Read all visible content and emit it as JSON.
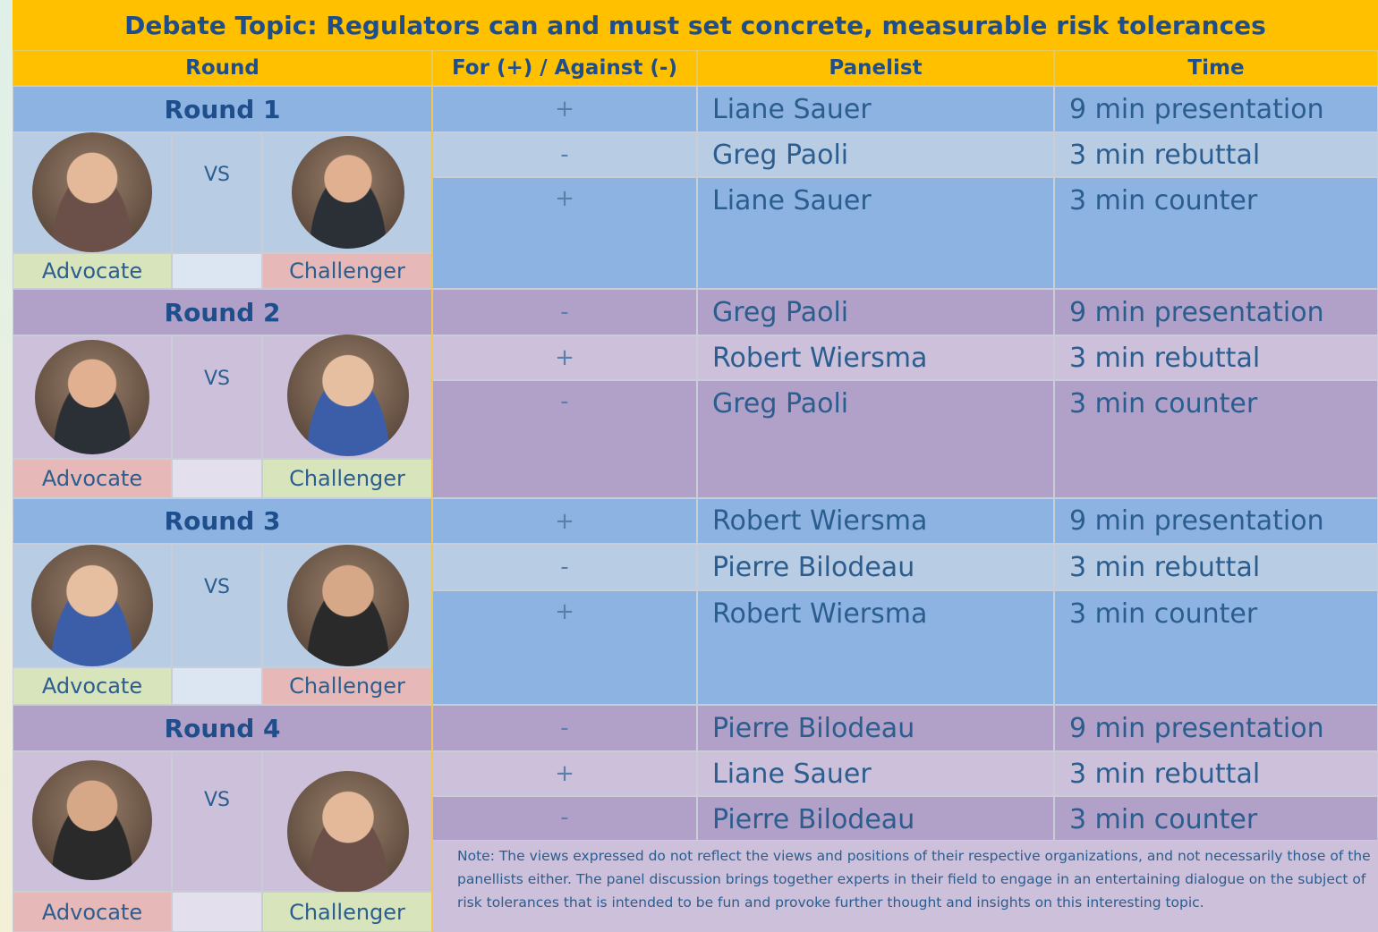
{
  "header": {
    "title": "Debate Topic: Regulators can and must set concrete, measurable risk tolerances"
  },
  "columns": [
    "Round",
    "For (+) / Against (-)",
    "Panelist",
    "Time"
  ],
  "rounds": [
    {
      "label": "Round 1",
      "vs": "VS",
      "left_role": "Advocate",
      "right_role": "Challenger",
      "rows": [
        {
          "side": "+",
          "panelist": "Liane Sauer",
          "time": "9 min presentation"
        },
        {
          "side": "-",
          "panelist": "Greg Paoli",
          "time": "3 min rebuttal"
        },
        {
          "side": "+",
          "panelist": "Liane Sauer",
          "time": "3 min counter"
        }
      ]
    },
    {
      "label": "Round 2",
      "vs": "VS",
      "left_role": "Advocate",
      "right_role": "Challenger",
      "rows": [
        {
          "side": "-",
          "panelist": "Greg Paoli",
          "time": "9 min presentation"
        },
        {
          "side": "+",
          "panelist": "Robert Wiersma",
          "time": "3 min rebuttal"
        },
        {
          "side": "-",
          "panelist": "Greg Paoli",
          "time": "3 min counter"
        }
      ]
    },
    {
      "label": "Round 3",
      "vs": "VS",
      "left_role": "Advocate",
      "right_role": "Challenger",
      "rows": [
        {
          "side": "+",
          "panelist": "Robert Wiersma",
          "time": "9 min presentation"
        },
        {
          "side": "-",
          "panelist": "Pierre Bilodeau",
          "time": "3 min rebuttal"
        },
        {
          "side": "+",
          "panelist": "Robert Wiersma",
          "time": "3 min counter"
        }
      ]
    },
    {
      "label": "Round 4",
      "vs": "VS",
      "left_role": "Advocate",
      "right_role": "Challenger",
      "rows": [
        {
          "side": "-",
          "panelist": "Pierre Bilodeau",
          "time": "9 min presentation"
        },
        {
          "side": "+",
          "panelist": "Liane Sauer",
          "time": "3 min rebuttal"
        },
        {
          "side": "-",
          "panelist": "Pierre Bilodeau",
          "time": "3 min counter"
        }
      ]
    }
  ],
  "note": "Note: The views expressed do not reflect the views and positions of their respective organizations, and not necessarily those of the panellists either. The panel discussion brings together experts in their field to engage in an entertaining dialogue on the subject of risk tolerances that is intended to be fun and provoke further thought and insights on this interesting topic."
}
